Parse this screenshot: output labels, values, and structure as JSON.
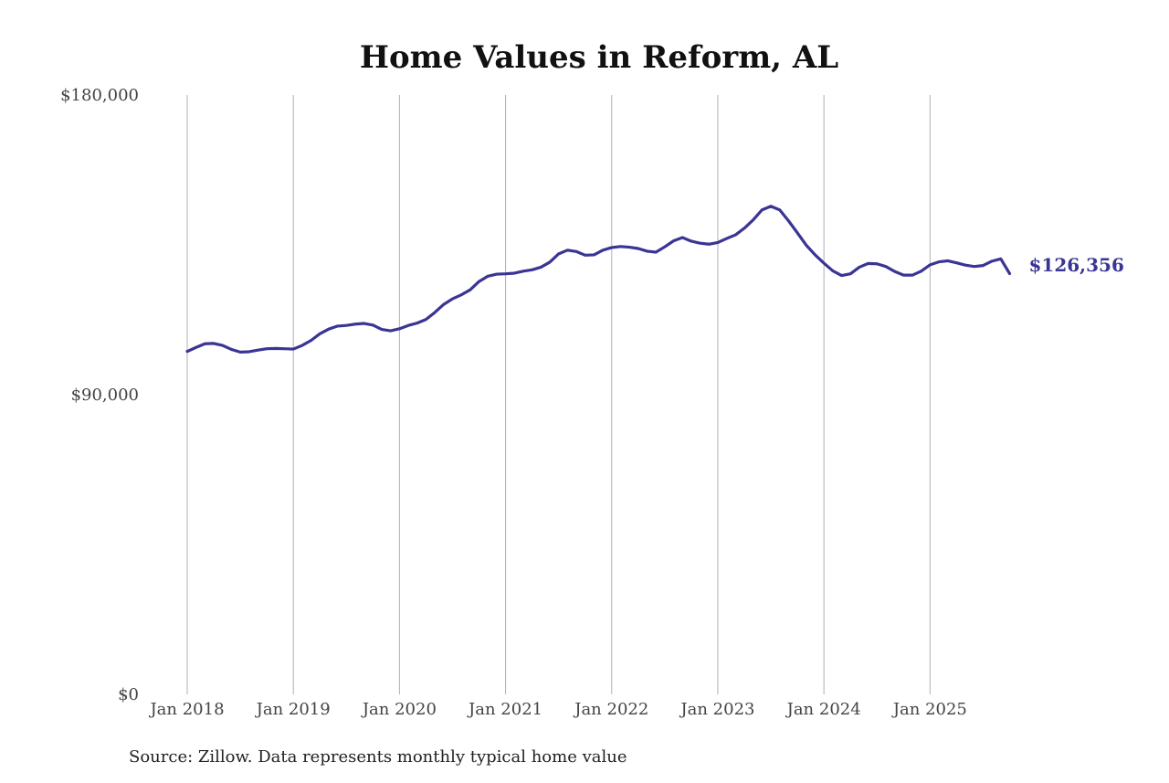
{
  "chart_data": {
    "type": "line",
    "title": "Home Values in Reform, AL",
    "source": "Source: Zillow. Data represents monthly typical home value",
    "ylim": [
      0,
      180000
    ],
    "yticks": [
      {
        "value": 0,
        "label": "$0"
      },
      {
        "value": 90000,
        "label": "$90,000"
      },
      {
        "value": 180000,
        "label": "$180,000"
      }
    ],
    "xticks": [
      {
        "value": 2018.0,
        "label": "Jan 2018"
      },
      {
        "value": 2019.0,
        "label": "Jan 2019"
      },
      {
        "value": 2020.0,
        "label": "Jan 2020"
      },
      {
        "value": 2021.0,
        "label": "Jan 2021"
      },
      {
        "value": 2022.0,
        "label": "Jan 2022"
      },
      {
        "value": 2023.0,
        "label": "Jan 2023"
      },
      {
        "value": 2024.0,
        "label": "Jan 2024"
      },
      {
        "value": 2025.0,
        "label": "Jan 2025"
      }
    ],
    "xlim": [
      2018.0,
      2025.75
    ],
    "grid": "vertical",
    "line_color": "#3a3594",
    "end_label": "$126,356",
    "series": [
      {
        "x": [
          2018.0,
          2018.0833,
          2018.1667,
          2018.25,
          2018.3333,
          2018.4167,
          2018.5,
          2018.5833,
          2018.6667,
          2018.75,
          2018.8333,
          2018.9167,
          2019.0,
          2019.0833,
          2019.1667,
          2019.25,
          2019.3333,
          2019.4167,
          2019.5,
          2019.5833,
          2019.6667,
          2019.75,
          2019.8333,
          2019.9167,
          2020.0,
          2020.0833,
          2020.1667,
          2020.25,
          2020.3333,
          2020.4167,
          2020.5,
          2020.5833,
          2020.6667,
          2020.75,
          2020.8333,
          2020.9167,
          2021.0,
          2021.0833,
          2021.1667,
          2021.25,
          2021.3333,
          2021.4167,
          2021.5,
          2021.5833,
          2021.6667,
          2021.75,
          2021.8333,
          2021.9167,
          2022.0,
          2022.0833,
          2022.1667,
          2022.25,
          2022.3333,
          2022.4167,
          2022.5,
          2022.5833,
          2022.6667,
          2022.75,
          2022.8333,
          2022.9167,
          2023.0,
          2023.0833,
          2023.1667,
          2023.25,
          2023.3333,
          2023.4167,
          2023.5,
          2023.5833,
          2023.6667,
          2023.75,
          2023.8333,
          2023.9167,
          2024.0,
          2024.0833,
          2024.1667,
          2024.25,
          2024.3333,
          2024.4167,
          2024.5,
          2024.5833,
          2024.6667,
          2024.75,
          2024.8333,
          2024.9167,
          2025.0,
          2025.0833,
          2025.1667,
          2025.25,
          2025.3333,
          2025.4167,
          2025.5,
          2025.5833,
          2025.6667,
          2025.75
        ],
        "y": [
          103000,
          104200,
          105300,
          105400,
          104800,
          103600,
          102800,
          102900,
          103400,
          103800,
          103900,
          103800,
          103700,
          104800,
          106300,
          108300,
          109700,
          110600,
          110800,
          111200,
          111400,
          110900,
          109600,
          109200,
          109800,
          110800,
          111500,
          112600,
          114700,
          117100,
          118800,
          120000,
          121500,
          124000,
          125600,
          126200,
          126300,
          126500,
          127100,
          127500,
          128300,
          129800,
          132300,
          133400,
          133000,
          131900,
          132000,
          133400,
          134200,
          134500,
          134300,
          133900,
          133100,
          132800,
          134400,
          136200,
          137200,
          136100,
          135500,
          135200,
          135700,
          136900,
          138000,
          140000,
          142500,
          145500,
          146600,
          145500,
          142200,
          138600,
          134900,
          132000,
          129500,
          127200,
          125800,
          126300,
          128300,
          129400,
          129300,
          128500,
          127000,
          125900,
          125900,
          127100,
          129000,
          129900,
          130200,
          129600,
          128900,
          128500,
          128800,
          130100,
          130800,
          126356
        ]
      }
    ]
  }
}
